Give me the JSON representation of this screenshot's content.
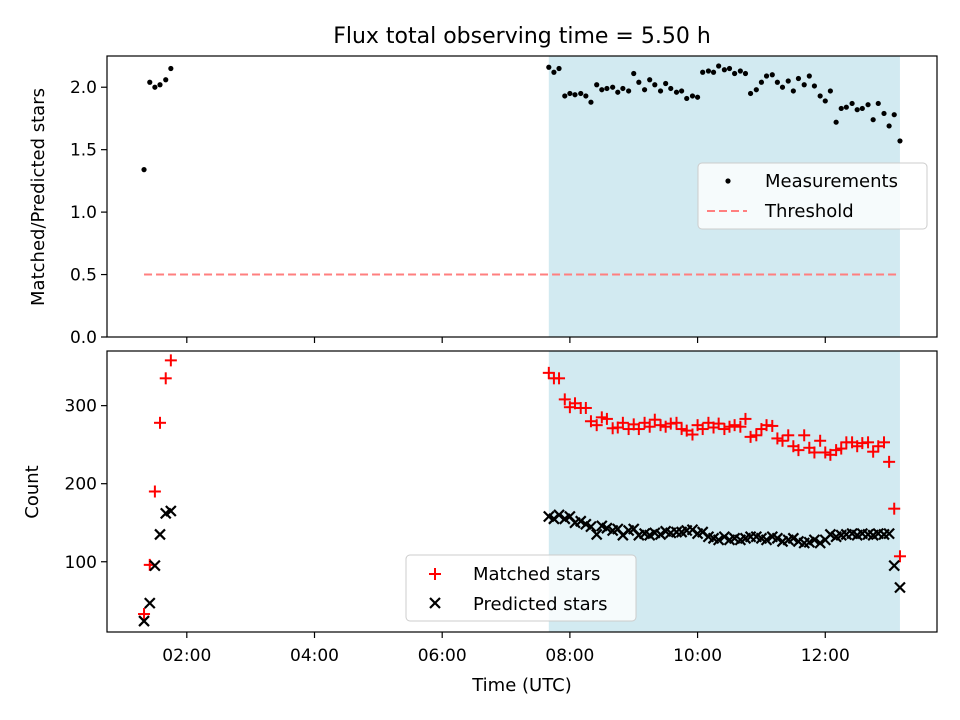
{
  "title": "Flux total observing time = 5.50 h",
  "colors": {
    "shade": "#add8e6",
    "measurement": "#000000",
    "threshold": "#ff7f7f",
    "matched": "#ff0000",
    "predicted": "#000000"
  },
  "chart_data": [
    {
      "type": "scatter",
      "ylabel": "Matched/Predicted stars",
      "ylim": [
        0,
        2.25
      ],
      "yticks": [
        "0.0",
        "0.5",
        "1.0",
        "1.5",
        "2.0"
      ],
      "shaded_interval": [
        7.67,
        13.17
      ],
      "legend": {
        "position": "center-right",
        "entries": [
          "Measurements",
          "Threshold"
        ]
      },
      "threshold": {
        "name": "Threshold",
        "value": 0.5,
        "x": [
          1.33,
          13.17
        ]
      },
      "series": [
        {
          "name": "Measurements",
          "x": [
            1.33,
            1.42,
            1.5,
            1.58,
            1.67,
            1.75,
            7.67,
            7.75,
            7.83,
            7.92,
            8.0,
            8.08,
            8.17,
            8.25,
            8.33,
            8.42,
            8.5,
            8.58,
            8.67,
            8.75,
            8.83,
            8.92,
            9.0,
            9.08,
            9.17,
            9.25,
            9.33,
            9.42,
            9.5,
            9.58,
            9.67,
            9.75,
            9.83,
            9.92,
            10.0,
            10.08,
            10.17,
            10.25,
            10.33,
            10.42,
            10.5,
            10.58,
            10.67,
            10.75,
            10.83,
            10.92,
            11.0,
            11.08,
            11.17,
            11.25,
            11.33,
            11.42,
            11.5,
            11.58,
            11.67,
            11.75,
            11.83,
            11.92,
            12.0,
            12.08,
            12.17,
            12.25,
            12.33,
            12.42,
            12.5,
            12.58,
            12.67,
            12.75,
            12.83,
            12.92,
            13.0,
            13.08,
            13.17
          ],
          "y": [
            1.34,
            2.04,
            2.0,
            2.02,
            2.06,
            2.15,
            2.16,
            2.12,
            2.15,
            1.93,
            1.95,
            1.94,
            1.95,
            1.93,
            1.88,
            2.02,
            1.98,
            1.99,
            2.0,
            1.96,
            1.99,
            1.97,
            2.11,
            2.04,
            1.98,
            2.06,
            2.02,
            1.97,
            2.03,
            1.99,
            1.96,
            1.97,
            1.91,
            1.93,
            1.92,
            2.12,
            2.13,
            2.12,
            2.17,
            2.14,
            2.15,
            2.11,
            2.13,
            2.11,
            1.95,
            1.98,
            2.04,
            2.09,
            2.1,
            2.04,
            2.0,
            2.05,
            1.97,
            2.07,
            2.02,
            2.09,
            2.01,
            1.93,
            1.89,
            1.97,
            1.72,
            1.83,
            1.84,
            1.87,
            1.82,
            1.83,
            1.86,
            1.74,
            1.87,
            1.79,
            1.69,
            1.78,
            1.57
          ]
        }
      ]
    },
    {
      "type": "scatter",
      "ylabel": "Count",
      "xlabel": "Time (UTC)",
      "ylim": [
        10,
        370
      ],
      "yticks": [
        "100",
        "200",
        "300"
      ],
      "xlim": [
        0.75,
        13.75
      ],
      "xticks": [
        "02:00",
        "04:00",
        "06:00",
        "08:00",
        "10:00",
        "12:00"
      ],
      "shaded_interval": [
        7.67,
        13.17
      ],
      "legend": {
        "position": "bottom-center",
        "entries": [
          "Matched stars",
          "Predicted stars"
        ]
      },
      "series": [
        {
          "name": "Matched stars",
          "marker": "+",
          "x": [
            1.33,
            1.42,
            1.5,
            1.58,
            1.67,
            1.75,
            7.67,
            7.75,
            7.83,
            7.92,
            8.0,
            8.08,
            8.17,
            8.25,
            8.33,
            8.42,
            8.5,
            8.58,
            8.67,
            8.75,
            8.83,
            8.92,
            9.0,
            9.08,
            9.17,
            9.25,
            9.33,
            9.42,
            9.5,
            9.58,
            9.67,
            9.75,
            9.83,
            9.92,
            10.0,
            10.08,
            10.17,
            10.25,
            10.33,
            10.42,
            10.5,
            10.58,
            10.67,
            10.75,
            10.83,
            10.92,
            11.0,
            11.08,
            11.17,
            11.25,
            11.33,
            11.42,
            11.5,
            11.58,
            11.67,
            11.75,
            11.83,
            11.92,
            12.0,
            12.08,
            12.17,
            12.25,
            12.33,
            12.42,
            12.5,
            12.58,
            12.67,
            12.75,
            12.83,
            12.92,
            13.0,
            13.08,
            13.17
          ],
          "y": [
            33,
            96,
            190,
            278,
            335,
            358,
            342,
            335,
            335,
            308,
            298,
            303,
            297,
            297,
            280,
            275,
            285,
            283,
            271,
            272,
            278,
            270,
            276,
            270,
            278,
            273,
            282,
            275,
            273,
            277,
            278,
            270,
            268,
            263,
            275,
            270,
            278,
            272,
            277,
            270,
            273,
            275,
            273,
            283,
            260,
            262,
            270,
            275,
            274,
            258,
            255,
            262,
            248,
            243,
            262,
            246,
            240,
            255,
            240,
            237,
            243,
            245,
            253,
            253,
            248,
            252,
            253,
            241,
            248,
            253,
            228,
            168,
            107
          ]
        },
        {
          "name": "Predicted stars",
          "marker": "x",
          "x": [
            1.33,
            1.42,
            1.5,
            1.58,
            1.67,
            1.75,
            7.67,
            7.75,
            7.83,
            7.92,
            8.0,
            8.08,
            8.17,
            8.25,
            8.33,
            8.42,
            8.5,
            8.58,
            8.67,
            8.75,
            8.83,
            8.92,
            9.0,
            9.08,
            9.17,
            9.25,
            9.33,
            9.42,
            9.5,
            9.58,
            9.67,
            9.75,
            9.83,
            9.92,
            10.0,
            10.08,
            10.17,
            10.25,
            10.33,
            10.42,
            10.5,
            10.58,
            10.67,
            10.75,
            10.83,
            10.92,
            11.0,
            11.08,
            11.17,
            11.25,
            11.33,
            11.42,
            11.5,
            11.58,
            11.67,
            11.75,
            11.83,
            11.92,
            12.0,
            12.08,
            12.17,
            12.25,
            12.33,
            12.42,
            12.5,
            12.58,
            12.67,
            12.75,
            12.83,
            12.92,
            13.0,
            13.08,
            13.17
          ],
          "y": [
            24,
            47,
            95,
            135,
            162,
            165,
            158,
            155,
            160,
            155,
            158,
            150,
            152,
            148,
            145,
            135,
            146,
            143,
            140,
            142,
            134,
            140,
            142,
            134,
            136,
            134,
            137,
            135,
            139,
            137,
            138,
            138,
            140,
            141,
            136,
            138,
            132,
            130,
            128,
            132,
            128,
            130,
            128,
            130,
            132,
            132,
            130,
            128,
            132,
            130,
            126,
            128,
            130,
            126,
            124,
            125,
            128,
            124,
            128,
            135,
            132,
            134,
            135,
            136,
            134,
            136,
            135,
            134,
            136,
            135,
            136,
            95,
            67
          ]
        }
      ]
    }
  ]
}
